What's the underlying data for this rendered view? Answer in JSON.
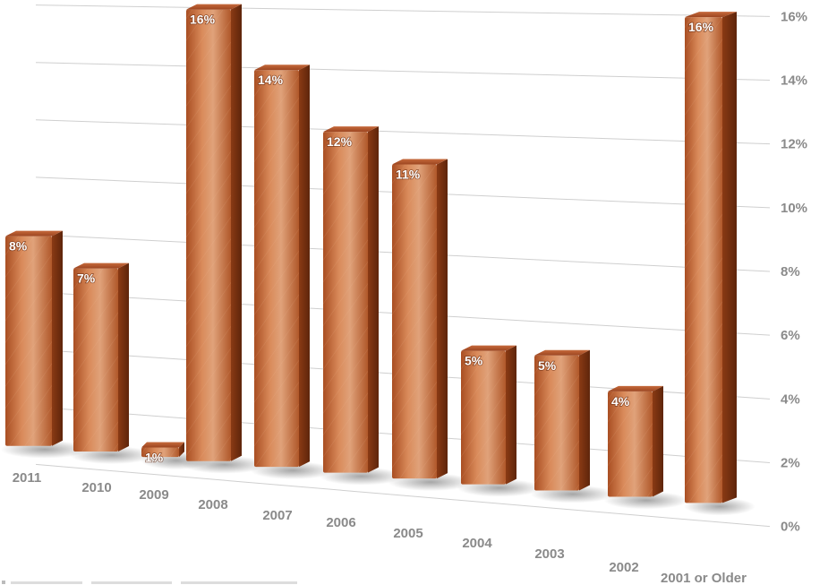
{
  "chart_data": {
    "type": "bar",
    "categories": [
      "2011",
      "2010",
      "2009",
      "2008",
      "2007",
      "2006",
      "2005",
      "2004",
      "2003",
      "2002",
      "2001 or Older"
    ],
    "values": [
      8,
      7,
      1,
      16,
      14,
      12,
      11,
      5,
      5,
      4,
      16
    ],
    "value_labels": [
      "8%",
      "7%",
      "1%",
      "16%",
      "14%",
      "12%",
      "11%",
      "5%",
      "5%",
      "4%",
      "16%"
    ],
    "y_ticks": [
      "0%",
      "2%",
      "4%",
      "6%",
      "8%",
      "10%",
      "12%",
      "14%",
      "16%"
    ],
    "ylim": [
      0,
      16
    ],
    "y_axis_position": "right",
    "grid": true,
    "legend": "none",
    "title": "",
    "xlabel": "",
    "ylabel": "",
    "colors": {
      "bar_light": "#d9895a",
      "bar_mid": "#c06a3a",
      "bar_dark": "#8a3f18",
      "bar_top": "#b5552a",
      "grid": "#cfcfcf",
      "axis_text": "#8a8a8a"
    }
  }
}
